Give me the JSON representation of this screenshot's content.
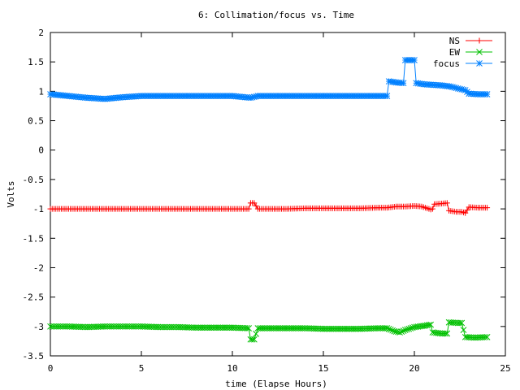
{
  "chart_data": {
    "type": "line",
    "title": "6: Collimation/focus vs. Time",
    "xlabel": "time (Elapse Hours)",
    "ylabel": "Volts",
    "xlim": [
      0,
      25
    ],
    "ylim": [
      -3.5,
      2
    ],
    "x_ticks": [
      0,
      5,
      10,
      15,
      20,
      25
    ],
    "x_tick_labels": [
      "0",
      "5",
      "10",
      "15",
      "20",
      "25"
    ],
    "y_ticks": [
      2,
      1.5,
      1,
      0.5,
      0,
      -0.5,
      -1,
      -1.5,
      -2,
      -2.5,
      -3,
      -3.5
    ],
    "y_tick_labels": [
      "2",
      "1.5",
      "1",
      "0.5",
      "0",
      "-0.5",
      "-1",
      "-1.5",
      "-2",
      "-2.5",
      "-3",
      "-3.5"
    ],
    "grid": false,
    "legend_position": "top-right",
    "series": [
      {
        "name": "NS",
        "color": "#ff0000",
        "marker": "plus",
        "points": [
          [
            0,
            -1.0
          ],
          [
            1,
            -1.0
          ],
          [
            2,
            -1.0
          ],
          [
            3,
            -1.0
          ],
          [
            4,
            -1.0
          ],
          [
            5,
            -1.0
          ],
          [
            6,
            -1.0
          ],
          [
            7,
            -1.0
          ],
          [
            8,
            -1.0
          ],
          [
            9,
            -1.0
          ],
          [
            10,
            -1.0
          ],
          [
            10.9,
            -1.0
          ],
          [
            11.0,
            -0.9
          ],
          [
            11.2,
            -0.9
          ],
          [
            11.4,
            -1.0
          ],
          [
            12,
            -1.0
          ],
          [
            13,
            -1.0
          ],
          [
            14,
            -0.99
          ],
          [
            15,
            -0.99
          ],
          [
            16,
            -0.99
          ],
          [
            17,
            -0.99
          ],
          [
            18,
            -0.98
          ],
          [
            18.5,
            -0.98
          ],
          [
            19,
            -0.96
          ],
          [
            19.5,
            -0.96
          ],
          [
            20,
            -0.95
          ],
          [
            20.4,
            -0.96
          ],
          [
            20.6,
            -0.98
          ],
          [
            20.9,
            -1.01
          ],
          [
            21.0,
            -1.0
          ],
          [
            21.1,
            -0.92
          ],
          [
            21.5,
            -0.91
          ],
          [
            21.8,
            -0.9
          ],
          [
            21.9,
            -1.03
          ],
          [
            22.3,
            -1.05
          ],
          [
            22.6,
            -1.05
          ],
          [
            22.8,
            -1.07
          ],
          [
            23.0,
            -0.97
          ],
          [
            23.5,
            -0.98
          ],
          [
            24.0,
            -0.98
          ]
        ]
      },
      {
        "name": "EW",
        "color": "#00c000",
        "marker": "cross",
        "points": [
          [
            0,
            -3.0
          ],
          [
            1,
            -3.0
          ],
          [
            2,
            -3.01
          ],
          [
            3,
            -3.0
          ],
          [
            4,
            -3.0
          ],
          [
            5,
            -3.0
          ],
          [
            6,
            -3.01
          ],
          [
            7,
            -3.01
          ],
          [
            8,
            -3.02
          ],
          [
            9,
            -3.02
          ],
          [
            10,
            -3.02
          ],
          [
            10.9,
            -3.03
          ],
          [
            11.0,
            -3.22
          ],
          [
            11.2,
            -3.22
          ],
          [
            11.4,
            -3.03
          ],
          [
            12,
            -3.03
          ],
          [
            13,
            -3.03
          ],
          [
            14,
            -3.03
          ],
          [
            15,
            -3.04
          ],
          [
            16,
            -3.04
          ],
          [
            17,
            -3.04
          ],
          [
            18,
            -3.03
          ],
          [
            18.5,
            -3.03
          ],
          [
            18.9,
            -3.08
          ],
          [
            19.2,
            -3.1
          ],
          [
            19.5,
            -3.06
          ],
          [
            20,
            -3.01
          ],
          [
            20.5,
            -2.99
          ],
          [
            20.9,
            -2.97
          ],
          [
            21.0,
            -3.1
          ],
          [
            21.5,
            -3.12
          ],
          [
            21.8,
            -3.12
          ],
          [
            21.9,
            -2.93
          ],
          [
            22.4,
            -2.94
          ],
          [
            22.6,
            -2.94
          ],
          [
            22.8,
            -3.18
          ],
          [
            23.3,
            -3.19
          ],
          [
            24.0,
            -3.18
          ]
        ]
      },
      {
        "name": "focus",
        "color": "#0080ff",
        "marker": "star",
        "points": [
          [
            0,
            0.95
          ],
          [
            1,
            0.92
          ],
          [
            2,
            0.89
          ],
          [
            3,
            0.87
          ],
          [
            4,
            0.9
          ],
          [
            5,
            0.92
          ],
          [
            6,
            0.92
          ],
          [
            7,
            0.92
          ],
          [
            8,
            0.92
          ],
          [
            9,
            0.92
          ],
          [
            10,
            0.92
          ],
          [
            11,
            0.89
          ],
          [
            11.4,
            0.92
          ],
          [
            12,
            0.92
          ],
          [
            13,
            0.92
          ],
          [
            14,
            0.92
          ],
          [
            15,
            0.92
          ],
          [
            16,
            0.92
          ],
          [
            17,
            0.92
          ],
          [
            18,
            0.92
          ],
          [
            18.5,
            0.92
          ],
          [
            18.6,
            1.17
          ],
          [
            19.0,
            1.15
          ],
          [
            19.4,
            1.14
          ],
          [
            19.5,
            1.53
          ],
          [
            20.0,
            1.53
          ],
          [
            20.1,
            1.14
          ],
          [
            20.5,
            1.12
          ],
          [
            21,
            1.11
          ],
          [
            21.5,
            1.1
          ],
          [
            22,
            1.08
          ],
          [
            22.5,
            1.04
          ],
          [
            22.8,
            1.02
          ],
          [
            23.0,
            0.96
          ],
          [
            23.5,
            0.95
          ],
          [
            24.0,
            0.95
          ]
        ]
      }
    ]
  }
}
